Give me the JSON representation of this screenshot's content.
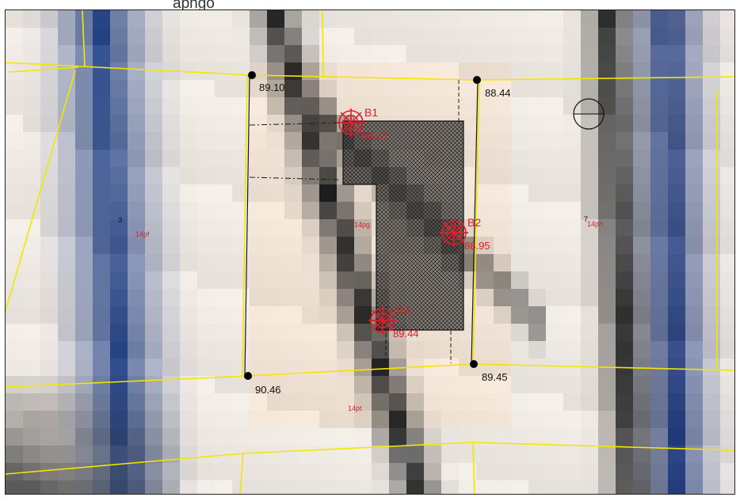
{
  "caption": "apngo",
  "colors": {
    "boundary": "#f2e600",
    "borehole": "#d8202a",
    "vertex": "#000000",
    "plot_line": "#1a1a1a"
  },
  "elevations": {
    "nw_corner": "89.10",
    "ne_corner": "88.44",
    "sw_corner": "90.46",
    "se_corner": "89.45"
  },
  "boreholes": [
    {
      "label": "B1",
      "elevation": "89.13"
    },
    {
      "label": "B2",
      "elevation": "88.95"
    },
    {
      "label": "B3",
      "elevation": "89.44"
    }
  ],
  "parcels": {
    "west": "14pf",
    "center": "14pg",
    "east": "14ph",
    "south": "14pt"
  },
  "plot_numbers": {
    "west": "3",
    "east": "7"
  },
  "icons": {
    "borehole": "borehole-target-icon",
    "vertex": "survey-point-icon",
    "tree": "tree-canopy-icon"
  }
}
